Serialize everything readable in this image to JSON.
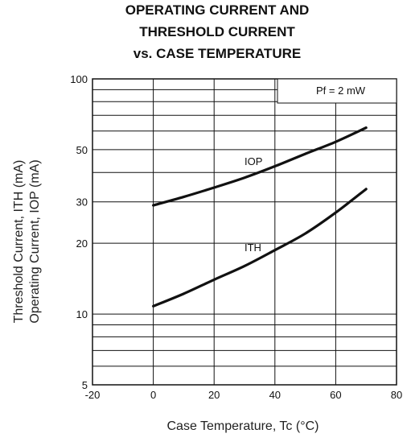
{
  "chart_data": {
    "type": "line",
    "title_lines": [
      "OPERATING CURRENT AND",
      "THRESHOLD CURRENT",
      "vs. CASE TEMPERATURE"
    ],
    "xlabel": "Case Temperature, Tc (°C)",
    "ylabel_lines": [
      "Threshold Current, ITH (mA)",
      "Operating Current, IOP (mA)"
    ],
    "xlim": [
      -20,
      80
    ],
    "ylim": [
      5,
      100
    ],
    "y_scale": "log",
    "grid": true,
    "x_ticks": [
      -20,
      0,
      20,
      40,
      60,
      80
    ],
    "x_tick_labels": [
      "-20",
      "0",
      "20",
      "40",
      "60",
      "80"
    ],
    "y_tick_values": [
      5,
      10,
      20,
      30,
      50,
      100
    ],
    "y_tick_labels": [
      "5",
      "10",
      "20",
      "30",
      "50",
      "100"
    ],
    "y_gridlines": [
      6,
      7,
      8,
      9,
      10,
      20,
      30,
      40,
      50,
      60,
      70,
      80,
      90,
      100
    ],
    "annotation": "Pf = 2 mW",
    "series": [
      {
        "name": "IOP",
        "label_at": [
          30,
          43
        ],
        "points": [
          [
            0,
            29
          ],
          [
            10,
            31.5
          ],
          [
            20,
            34.5
          ],
          [
            30,
            38
          ],
          [
            40,
            42.5
          ],
          [
            50,
            48
          ],
          [
            60,
            54
          ],
          [
            70,
            62
          ]
        ]
      },
      {
        "name": "ITH",
        "label_at": [
          30,
          18.5
        ],
        "points": [
          [
            0,
            10.8
          ],
          [
            10,
            12.2
          ],
          [
            20,
            14
          ],
          [
            30,
            16
          ],
          [
            40,
            18.7
          ],
          [
            50,
            22
          ],
          [
            60,
            27
          ],
          [
            70,
            34
          ]
        ]
      }
    ]
  }
}
